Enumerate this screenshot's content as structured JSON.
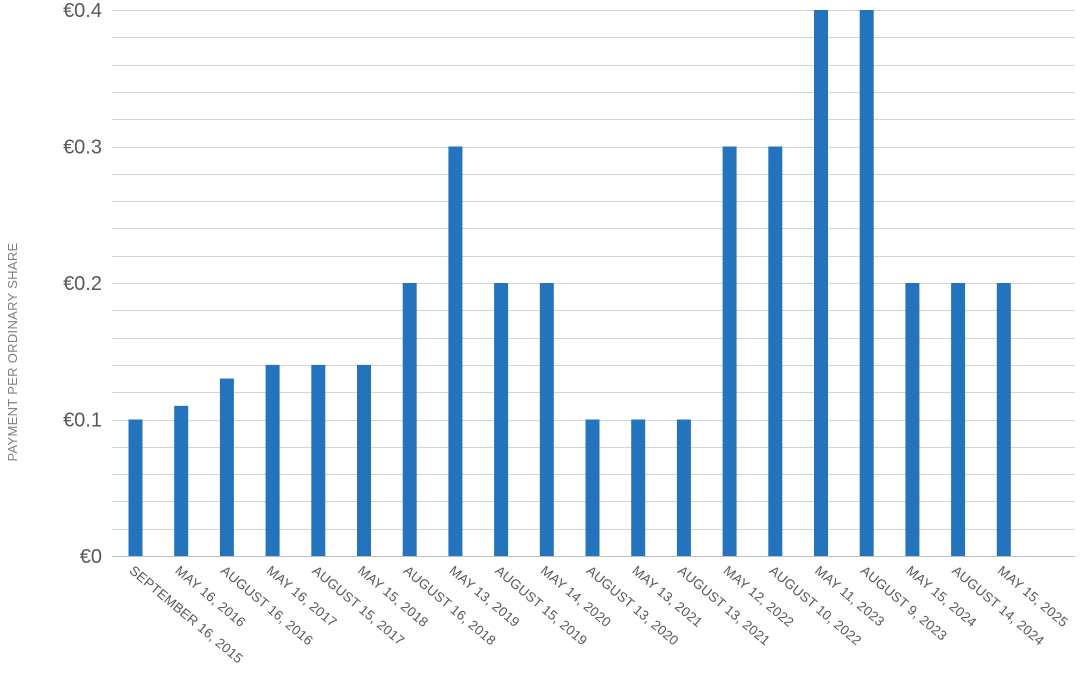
{
  "chart_data": {
    "type": "bar",
    "title": "",
    "xlabel": "",
    "ylabel": "PAYMENT PER ORDINARY SHARE",
    "ylim": [
      0,
      0.4
    ],
    "y_ticks": [
      "€0",
      "€0.1",
      "€0.2",
      "€0.3",
      "€0.4"
    ],
    "y_tick_values": [
      0,
      0.1,
      0.2,
      0.3,
      0.4
    ],
    "grid": true,
    "minor_grid_step": 0.02,
    "legend": "none",
    "categories": [
      "SEPTEMBER 16, 2015",
      "MAY 16, 2016",
      "AUGUST 16, 2016",
      "MAY 16, 2017",
      "AUGUST 15, 2017",
      "MAY 15, 2018",
      "AUGUST 16, 2018",
      "MAY 13, 2019",
      "AUGUST 15, 2019",
      "MAY 14, 2020",
      "AUGUST 13, 2020",
      "MAY 13, 2021",
      "AUGUST 13, 2021",
      "MAY 12, 2022",
      "AUGUST 10, 2022",
      "MAY 11, 2023",
      "AUGUST 9, 2023",
      "MAY 15, 2024",
      "AUGUST 14, 2024",
      "MAY 15, 2025"
    ],
    "values": [
      0.1,
      0.11,
      0.13,
      0.14,
      0.14,
      0.14,
      0.2,
      0.3,
      0.2,
      0.2,
      0.1,
      0.1,
      0.1,
      0.3,
      0.3,
      0.4,
      0.4,
      0.2,
      0.2,
      0.2
    ],
    "colors": {
      "bar": "#2474bd",
      "grid": "#d4d4d4",
      "text": "#595959"
    }
  }
}
